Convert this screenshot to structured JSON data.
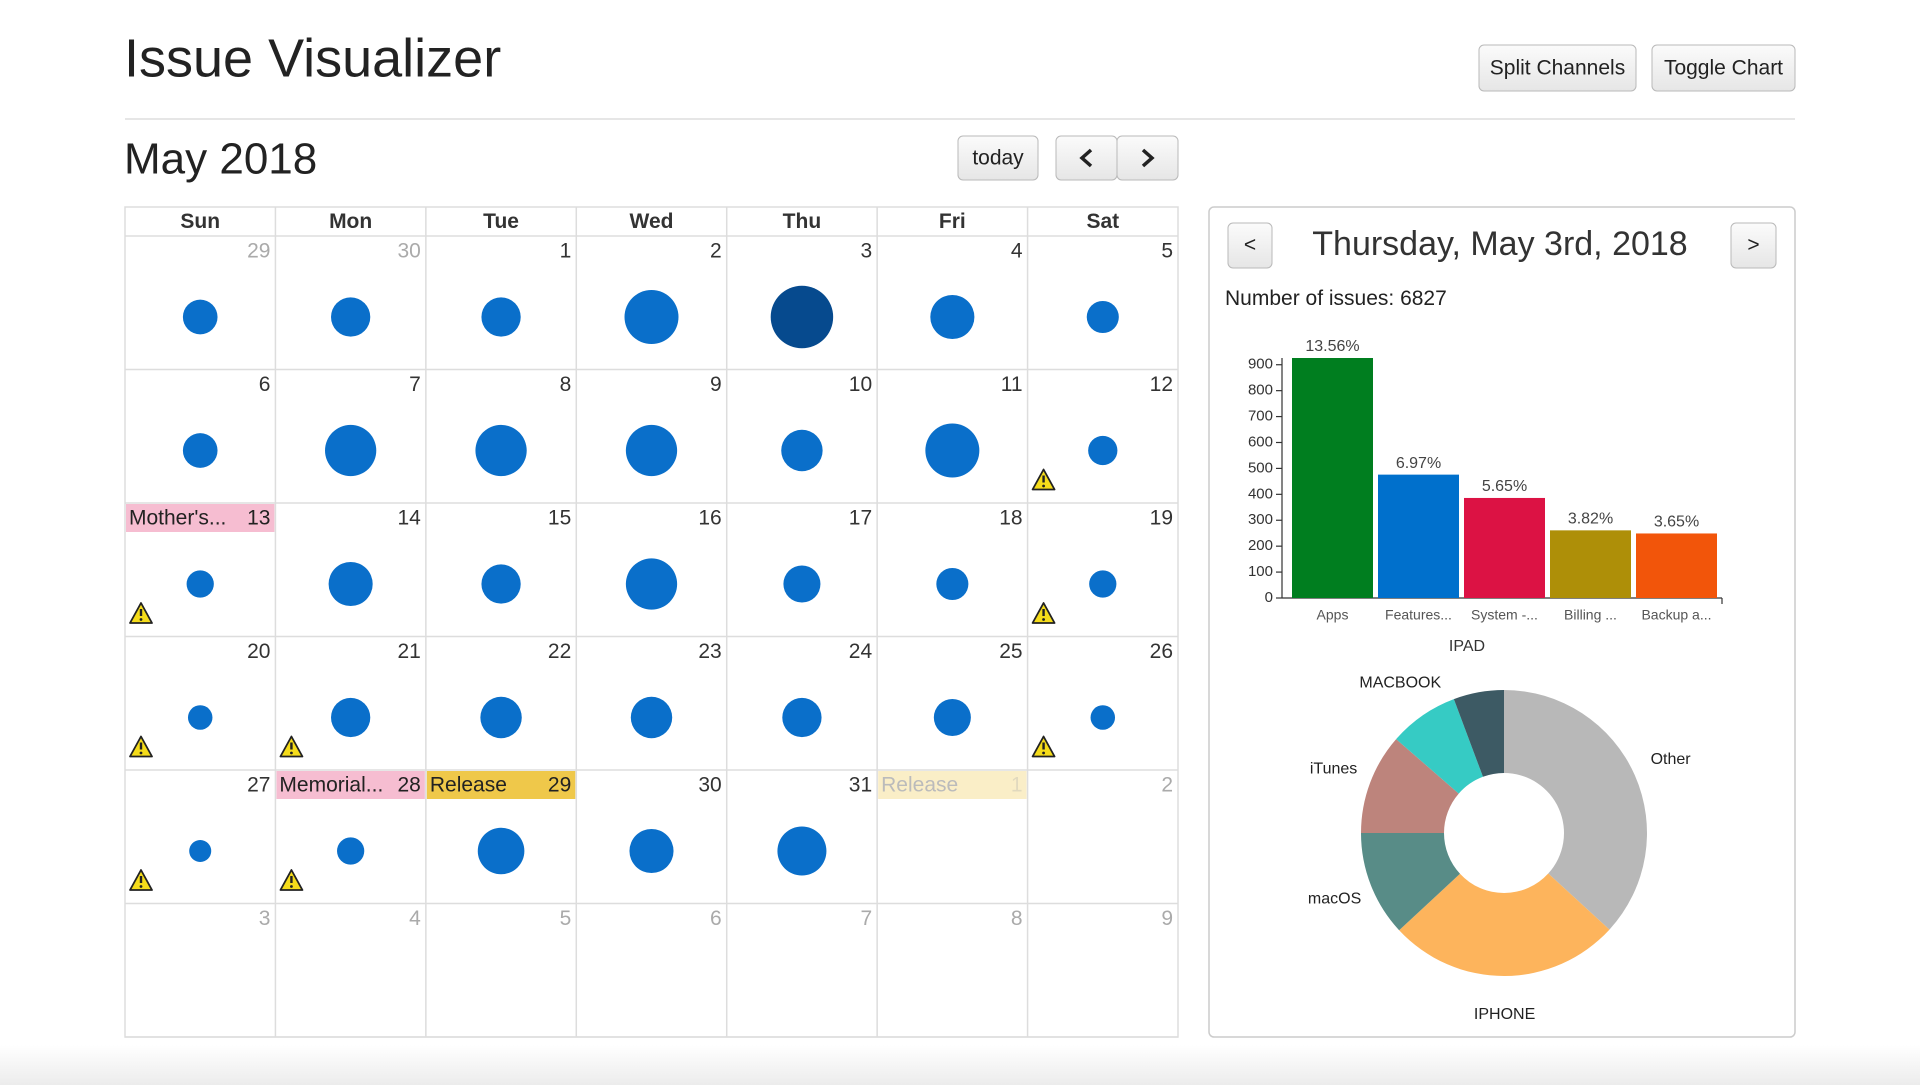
{
  "header": {
    "title": "Issue Visualizer",
    "buttons": [
      "Split Channels",
      "Toggle Chart"
    ]
  },
  "calendar": {
    "month": "May 2018",
    "today_button": "today",
    "weekdays": [
      "Sun",
      "Mon",
      "Tue",
      "Wed",
      "Thu",
      "Fri",
      "Sat"
    ],
    "circle_color": "#0a6fca",
    "selected_color": "#064a8e",
    "weeks": [
      [
        {
          "day": 29,
          "other_month": true,
          "issues": 2100
        },
        {
          "day": 30,
          "other_month": true,
          "issues": 2700
        },
        {
          "day": 1,
          "issues": 2700
        },
        {
          "day": 2,
          "issues": 5100
        },
        {
          "day": 3,
          "issues": 6827,
          "selected": true
        },
        {
          "day": 4,
          "issues": 3400
        },
        {
          "day": 5,
          "issues": 1800
        }
      ],
      [
        {
          "day": 6,
          "issues": 2100
        },
        {
          "day": 7,
          "issues": 4600
        },
        {
          "day": 8,
          "issues": 4600
        },
        {
          "day": 9,
          "issues": 4600
        },
        {
          "day": 10,
          "issues": 3000
        },
        {
          "day": 11,
          "issues": 5100
        },
        {
          "day": 12,
          "issues": 1500,
          "warning": true
        }
      ],
      [
        {
          "day": 13,
          "issues": 1300,
          "warning": true,
          "event": {
            "label": "Mother's...",
            "color": "#f6bdd1"
          }
        },
        {
          "day": 14,
          "issues": 3400
        },
        {
          "day": 15,
          "issues": 2700
        },
        {
          "day": 16,
          "issues": 4600
        },
        {
          "day": 17,
          "issues": 2400
        },
        {
          "day": 18,
          "issues": 1800
        },
        {
          "day": 19,
          "issues": 1300,
          "warning": true
        }
      ],
      [
        {
          "day": 20,
          "issues": 1050,
          "warning": true
        },
        {
          "day": 21,
          "issues": 2700,
          "warning": true
        },
        {
          "day": 22,
          "issues": 3000
        },
        {
          "day": 23,
          "issues": 3000
        },
        {
          "day": 24,
          "issues": 2700
        },
        {
          "day": 25,
          "issues": 2400
        },
        {
          "day": 26,
          "issues": 1050,
          "warning": true
        }
      ],
      [
        {
          "day": 27,
          "issues": 850,
          "warning": true
        },
        {
          "day": 28,
          "issues": 1300,
          "warning": true,
          "event": {
            "label": "Memorial...",
            "color": "#f6bdd1"
          }
        },
        {
          "day": 29,
          "issues": 3800,
          "event": {
            "label": "Release",
            "color": "#efc84a"
          }
        },
        {
          "day": 30,
          "issues": 3400
        },
        {
          "day": 31,
          "issues": 4200
        },
        {
          "day": 1,
          "other_month": true,
          "event": {
            "label": "Release",
            "color": "#efc84a",
            "faded": true
          }
        },
        {
          "day": 2,
          "other_month": true
        }
      ],
      [
        {
          "day": 3,
          "other_month": true
        },
        {
          "day": 4,
          "other_month": true
        },
        {
          "day": 5,
          "other_month": true
        },
        {
          "day": 6,
          "other_month": true
        },
        {
          "day": 7,
          "other_month": true
        },
        {
          "day": 8,
          "other_month": true
        },
        {
          "day": 9,
          "other_month": true
        }
      ]
    ]
  },
  "detail": {
    "prev": "<",
    "next": ">",
    "date": "Thursday, May 3rd, 2018",
    "issues_label": "Number of issues:",
    "issues": 6827
  },
  "chart_data": [
    {
      "type": "bar",
      "categories": [
        "Apps",
        "Features...",
        "System -...",
        "Billing ...",
        "Backup a..."
      ],
      "values": [
        926,
        476,
        386,
        261,
        249
      ],
      "percent_labels": [
        "13.56%",
        "6.97%",
        "5.65%",
        "3.82%",
        "3.65%"
      ],
      "colors": [
        "#007e1f",
        "#0070cc",
        "#dc1244",
        "#ae8f08",
        "#f2550a"
      ],
      "xlabel": "IPAD",
      "ylim": [
        0,
        926
      ],
      "yticks": [
        0,
        100,
        200,
        300,
        400,
        500,
        600,
        700,
        800,
        900
      ]
    },
    {
      "type": "pie",
      "donut": true,
      "categories": [
        "Other",
        "IPHONE",
        "macOS",
        "iTunes",
        "MACBOOK",
        null
      ],
      "values": [
        36.8,
        26.3,
        11.9,
        11.4,
        7.9,
        5.7
      ],
      "colors": [
        "#b8b8b8",
        "#fdb45c",
        "#588c87",
        "#bd847c",
        "#36cbc4",
        "#3d5a64"
      ]
    }
  ]
}
